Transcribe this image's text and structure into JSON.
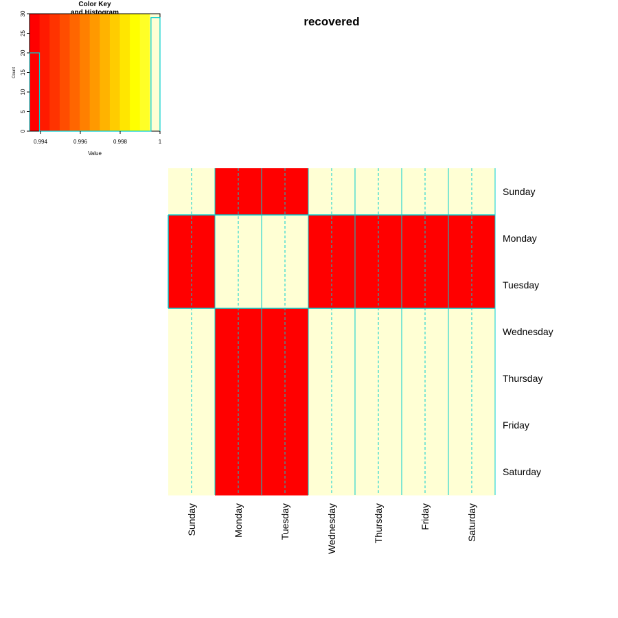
{
  "chart_data": {
    "type": "heatmap",
    "title": "recovered",
    "rows": [
      "Sunday",
      "Monday",
      "Tuesday",
      "Wednesday",
      "Thursday",
      "Friday",
      "Saturday"
    ],
    "columns": [
      "Sunday",
      "Monday",
      "Tuesday",
      "Wednesday",
      "Thursday",
      "Friday",
      "Saturday"
    ],
    "values": [
      [
        1,
        0.9935,
        0.9935,
        1,
        1,
        1,
        1
      ],
      [
        0.9935,
        1,
        1,
        0.9935,
        0.9935,
        0.9935,
        0.9935
      ],
      [
        0.9935,
        1,
        1,
        0.9935,
        0.9935,
        0.9935,
        0.9935
      ],
      [
        1,
        0.9935,
        0.9935,
        1,
        1,
        1,
        1
      ],
      [
        1,
        0.9935,
        0.9935,
        1,
        1,
        1,
        1
      ],
      [
        1,
        0.9935,
        0.9935,
        1,
        1,
        1,
        1
      ],
      [
        1,
        0.9935,
        0.9935,
        1,
        1,
        1,
        1
      ]
    ],
    "colors": {
      "low": "#FF0000",
      "high": "#FFFFD4",
      "trace": "#00CED1",
      "key_palette": [
        "#FF0000",
        "#FF1A00",
        "#FF3300",
        "#FF4D00",
        "#FF6600",
        "#FF8000",
        "#FF9900",
        "#FFB300",
        "#FFCC00",
        "#FFE600",
        "#FFFF00",
        "#FFFF26",
        "#FFFFD4"
      ]
    },
    "color_key": {
      "title": "Color Key\nand Histogram",
      "xlabel": "Value",
      "ylabel": "Count",
      "x_ticks": [
        "0.994",
        "0.996",
        "0.998",
        "1"
      ],
      "y_ticks": [
        "0",
        "5",
        "10",
        "15",
        "20",
        "25",
        "30"
      ],
      "xlim": [
        0.99345,
        1.0
      ],
      "ylim": [
        0,
        30
      ],
      "histogram": [
        {
          "from": 0.99345,
          "to": 0.99395,
          "count": 20
        },
        {
          "from": 0.99395,
          "to": 0.99955,
          "count": 0
        },
        {
          "from": 0.99955,
          "to": 1.0,
          "count": 29
        }
      ]
    }
  }
}
